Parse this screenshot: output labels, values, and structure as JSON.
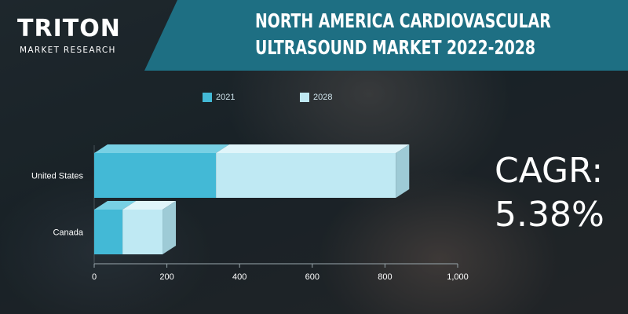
{
  "brand": {
    "name": "TRITON",
    "tagline": "MARKET RESEARCH"
  },
  "title": {
    "line1": "NORTH AMERICA CARDIOVASCULAR",
    "line2": "ULTRASOUND MARKET 2022-2028"
  },
  "cagr": {
    "label": "CAGR:",
    "value": "5.38%"
  },
  "colors": {
    "banner": "#1e6f83",
    "series_2021": "#43b9d6",
    "series_2028": "#bfe9f3",
    "text_light": "#ffffff"
  },
  "chart_data": {
    "type": "bar",
    "orientation": "horizontal",
    "stacked": true,
    "style": "3d",
    "categories": [
      "United States",
      "Canada"
    ],
    "series": [
      {
        "name": "2021",
        "values": [
          335,
          78
        ]
      },
      {
        "name": "2028",
        "values": [
          495,
          110
        ]
      }
    ],
    "xlim": [
      0,
      1000
    ],
    "xticks": [
      "0",
      "200",
      "400",
      "600",
      "800",
      "1,000"
    ],
    "title": "",
    "xlabel": "",
    "ylabel": "",
    "legend": "top",
    "grid": false
  }
}
